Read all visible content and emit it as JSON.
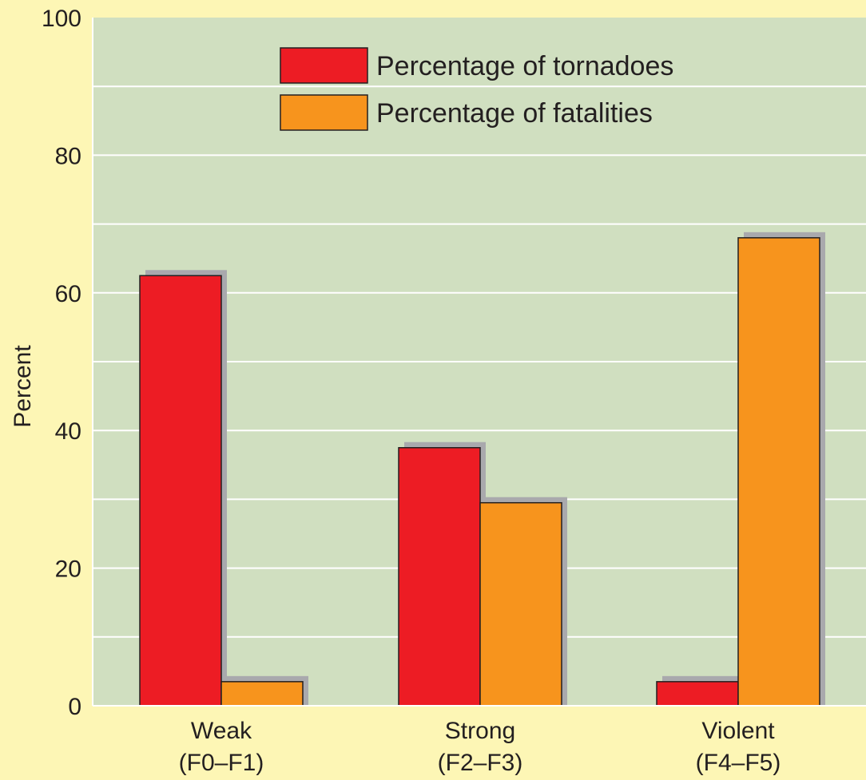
{
  "chart_data": {
    "type": "bar",
    "title": "",
    "xlabel": "",
    "ylabel": "Percent",
    "ylim": [
      0,
      100
    ],
    "yticks": [
      0,
      20,
      40,
      60,
      80,
      100
    ],
    "minor_grid_step": 10,
    "grid": true,
    "legend_position": "top-center",
    "categories": [
      {
        "line1": "Weak",
        "line2": "(F0–F1)"
      },
      {
        "line1": "Strong",
        "line2": "(F2–F3)"
      },
      {
        "line1": "Violent",
        "line2": "(F4–F5)"
      }
    ],
    "series": [
      {
        "name": "Percentage of tornadoes",
        "color": "#ed1c24",
        "values": [
          62.5,
          37.5,
          3.5
        ]
      },
      {
        "name": "Percentage of fatalities",
        "color": "#f7941d",
        "values": [
          3.5,
          29.5,
          68
        ]
      }
    ],
    "colors": {
      "page_background": "#fdf6b5",
      "plot_background": "#d0dfc0",
      "grid": "#ffffff",
      "bar_shadow": "#a9a9ad",
      "bar_outline": "#231f20"
    }
  }
}
